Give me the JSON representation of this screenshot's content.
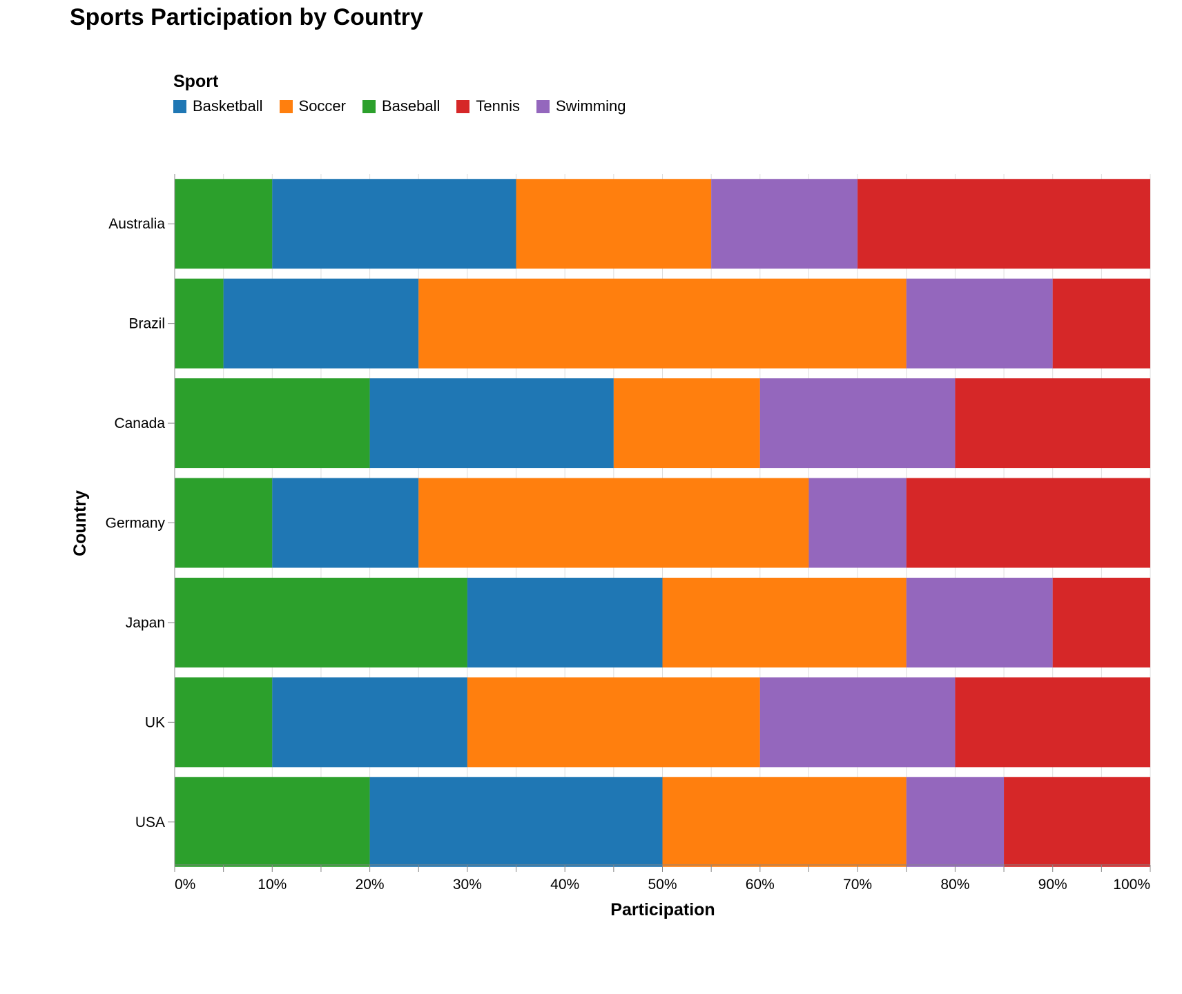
{
  "chart_data": {
    "type": "bar",
    "orientation": "horizontal",
    "stacked": "normalized",
    "title": "Sports Participation by Country",
    "xlabel": "Participation",
    "ylabel": "Country",
    "xlim": [
      0,
      100
    ],
    "x_ticks": [
      "0%",
      "10%",
      "20%",
      "30%",
      "40%",
      "50%",
      "60%",
      "70%",
      "80%",
      "90%",
      "100%"
    ],
    "grid": true,
    "legend": {
      "title": "Sport",
      "position": "top-left"
    },
    "categories": [
      "Australia",
      "Brazil",
      "Canada",
      "Germany",
      "Japan",
      "UK",
      "USA"
    ],
    "stack_order": [
      "Baseball",
      "Basketball",
      "Soccer",
      "Swimming",
      "Tennis"
    ],
    "series": [
      {
        "name": "Basketball",
        "color": "#1f77b4",
        "values": [
          25,
          20,
          25,
          15,
          20,
          20,
          30
        ]
      },
      {
        "name": "Soccer",
        "color": "#ff7f0e",
        "values": [
          20,
          50,
          15,
          40,
          25,
          30,
          25
        ]
      },
      {
        "name": "Baseball",
        "color": "#2ca02c",
        "values": [
          10,
          5,
          20,
          10,
          30,
          10,
          20
        ]
      },
      {
        "name": "Tennis",
        "color": "#d62728",
        "values": [
          30,
          10,
          20,
          25,
          10,
          20,
          15
        ]
      },
      {
        "name": "Swimming",
        "color": "#9467bd",
        "values": [
          15,
          15,
          20,
          10,
          15,
          20,
          10
        ]
      }
    ]
  }
}
